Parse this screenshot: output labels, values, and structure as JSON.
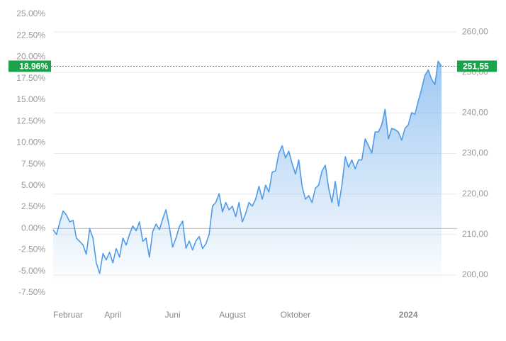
{
  "chart_data": {
    "type": "line",
    "categories": [
      "Februar",
      null,
      null,
      null,
      null,
      null,
      null,
      null,
      null,
      null,
      null,
      null,
      null,
      null,
      null,
      null,
      null,
      null,
      "April",
      null,
      null,
      null,
      null,
      null,
      null,
      null,
      null,
      null,
      null,
      null,
      null,
      null,
      null,
      null,
      null,
      null,
      "Juni",
      null,
      null,
      null,
      null,
      null,
      null,
      null,
      null,
      null,
      null,
      null,
      null,
      null,
      null,
      null,
      null,
      null,
      "August",
      null,
      null,
      null,
      null,
      null,
      null,
      null,
      null,
      null,
      null,
      null,
      null,
      null,
      null,
      null,
      null,
      null,
      null,
      "Oktober",
      null,
      null,
      null,
      null,
      null,
      null,
      null,
      null,
      null,
      null,
      null,
      null,
      null,
      null,
      null,
      null,
      null,
      null,
      null,
      null,
      null,
      null,
      null,
      null,
      null,
      null,
      null,
      null,
      null,
      null,
      null,
      null,
      null,
      "2024",
      null,
      null,
      null,
      null,
      null,
      null,
      null,
      null,
      null,
      null
    ],
    "series": [
      {
        "color": "#4f9be8",
        "axis": "y2",
        "values": [
          211.2,
          210.0,
          213.0,
          215.8,
          214.8,
          213.1,
          213.5,
          209.1,
          208.3,
          207.4,
          205.1,
          211.4,
          209.1,
          203.0,
          200.4,
          205.3,
          203.7,
          205.6,
          203.0,
          206.5,
          204.4,
          209.1,
          207.4,
          210.0,
          212.1,
          210.9,
          213.1,
          208.3,
          209.1,
          204.4,
          210.7,
          212.6,
          211.2,
          213.8,
          216.1,
          211.9,
          206.9,
          209.1,
          211.9,
          213.3,
          206.6,
          208.4,
          206.2,
          208.4,
          209.5,
          206.5,
          207.7,
          210.0,
          217.0,
          217.9,
          220.1,
          215.6,
          217.9,
          216.1,
          217.0,
          214.4,
          217.9,
          213.1,
          215.2,
          217.9,
          217.0,
          218.7,
          221.9,
          218.7,
          222.2,
          220.5,
          225.4,
          225.7,
          230.1,
          231.9,
          228.9,
          230.6,
          227.5,
          224.9,
          228.4,
          221.9,
          218.7,
          219.6,
          217.9,
          221.4,
          222.2,
          225.7,
          227.1,
          221.4,
          217.9,
          223.1,
          217.0,
          222.2,
          229.2,
          226.6,
          228.4,
          226.2,
          228.4,
          228.4,
          233.6,
          231.9,
          230.1,
          235.3,
          235.3,
          237.1,
          240.9,
          233.6,
          236.2,
          235.9,
          235.3,
          233.3,
          236.2,
          237.1,
          240.1,
          239.7,
          242.9,
          245.9,
          249.3,
          250.6,
          248.4,
          247.0,
          252.8,
          251.55
        ]
      }
    ],
    "ylim": [
      -7.5,
      25
    ],
    "yticks": [
      {
        "value": -7.5,
        "label": "-7.50%"
      },
      {
        "value": -5,
        "label": "-5.00%"
      },
      {
        "value": -2.5,
        "label": "-2.50%"
      },
      {
        "value": 0,
        "label": "0.00%"
      },
      {
        "value": 2.5,
        "label": "2.50%"
      },
      {
        "value": 5,
        "label": "5.00%"
      },
      {
        "value": 7.5,
        "label": "7.50%"
      },
      {
        "value": 10,
        "label": "10.00%"
      },
      {
        "value": 12.5,
        "label": "12.50%"
      },
      {
        "value": 15,
        "label": "15.00%"
      },
      {
        "value": 17.5,
        "label": "17.50%"
      },
      {
        "value": 20,
        "label": "20.00%"
      },
      {
        "value": 22.5,
        "label": "22.50%"
      },
      {
        "value": 25,
        "label": "25.00%"
      }
    ],
    "y2lim": [
      195.6,
      264.4
    ],
    "y2ticks": [
      {
        "value": 200,
        "label": "200,00"
      },
      {
        "value": 210,
        "label": "210,00"
      },
      {
        "value": 220,
        "label": "220,00"
      },
      {
        "value": 230,
        "label": "230,00"
      },
      {
        "value": 240,
        "label": "240,00"
      },
      {
        "value": 250,
        "label": "250,00"
      },
      {
        "value": 260,
        "label": "260,00"
      }
    ],
    "grid": true,
    "current": {
      "percent": {
        "value": 18.96,
        "label": "18.96%"
      },
      "price": {
        "value": 251.55,
        "label": "251,55"
      },
      "color": "#1aa34a"
    }
  }
}
